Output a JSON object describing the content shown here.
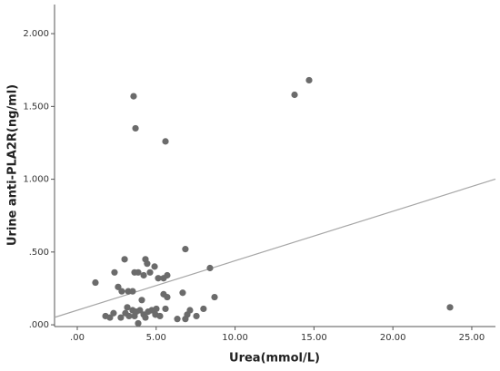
{
  "chart_data": {
    "type": "scatter",
    "x_label": "Urea(mmol/L)",
    "y_label": "Urine anti-PLA2R(ng/ml)",
    "color": "#6b6b6b",
    "fit_color": "#a6a6a6",
    "fit_line": {
      "intercept": 0.1,
      "slope": 0.034
    },
    "xlim": [
      -1.44,
      26.5
    ],
    "ylim": [
      -0.012,
      2.2
    ],
    "xticks": [
      {
        "value": 0,
        "label": ".00"
      },
      {
        "value": 5,
        "label": "5.00"
      },
      {
        "value": 10,
        "label": "10.00"
      },
      {
        "value": 15,
        "label": "15.00"
      },
      {
        "value": 20,
        "label": "20.00"
      },
      {
        "value": 25,
        "label": "25.00"
      }
    ],
    "yticks": [
      {
        "value": 0,
        "label": ".000"
      },
      {
        "value": 0.5,
        "label": ".500"
      },
      {
        "value": 1,
        "label": "1.000"
      },
      {
        "value": 1.5,
        "label": "1.500"
      },
      {
        "value": 2,
        "label": "2.000"
      }
    ],
    "x": [
      3.57,
      3.69,
      5.59,
      13.77,
      14.69,
      23.62,
      6.85,
      8.41,
      8.7,
      1.15,
      3.0,
      2.36,
      4.32,
      4.43,
      3.63,
      3.86,
      4.61,
      4.9,
      5.13,
      5.47,
      5.7,
      4.21,
      2.59,
      2.82,
      3.23,
      3.51,
      5.47,
      5.7,
      6.68,
      4.09,
      5.59,
      8.0,
      6.97,
      7.55,
      6.34,
      6.85,
      1.79,
      2.07,
      2.3,
      2.76,
      3.05,
      3.28,
      3.51,
      3.74,
      3.97,
      4.21,
      4.49,
      4.72,
      4.95,
      5.24,
      3.86,
      3.63,
      3.17,
      4.32,
      5.01,
      7.14
    ],
    "y": [
      1.57,
      1.35,
      1.26,
      1.58,
      1.68,
      0.12,
      0.52,
      0.39,
      0.19,
      0.29,
      0.45,
      0.36,
      0.45,
      0.42,
      0.36,
      0.36,
      0.36,
      0.4,
      0.32,
      0.32,
      0.34,
      0.34,
      0.26,
      0.23,
      0.23,
      0.23,
      0.21,
      0.19,
      0.22,
      0.17,
      0.11,
      0.11,
      0.07,
      0.06,
      0.04,
      0.04,
      0.06,
      0.05,
      0.08,
      0.05,
      0.08,
      0.06,
      0.1,
      0.09,
      0.1,
      0.07,
      0.09,
      0.1,
      0.07,
      0.06,
      0.01,
      0.06,
      0.12,
      0.05,
      0.11,
      0.1
    ]
  }
}
